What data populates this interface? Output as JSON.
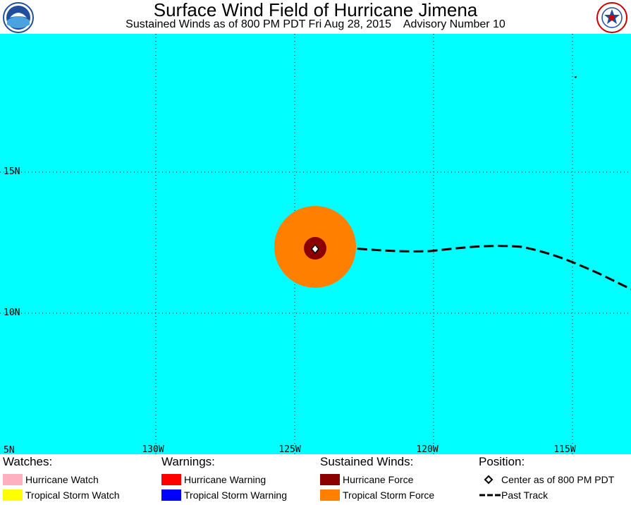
{
  "header": {
    "title": "Surface Wind Field of Hurricane Jimena",
    "subtitle": "Sustained Winds as of 800 PM PDT Fri Aug 28, 2015    Advisory Number 10"
  },
  "map": {
    "background_color": "#00ffff",
    "latitude_labels": [
      "15N",
      "10N",
      "5N"
    ],
    "longitude_labels": [
      "130W",
      "125W",
      "120W",
      "115W"
    ],
    "storm": {
      "name": "Jimena",
      "center_lon": -124.0,
      "center_lat": 12.3,
      "tropical_storm_force_color": "#ff8000",
      "hurricane_force_color": "#8b0000"
    }
  },
  "legend": {
    "watches": {
      "heading": "Watches:",
      "items": [
        {
          "label": "Hurricane Watch",
          "color": "#ffb0c0"
        },
        {
          "label": "Tropical Storm Watch",
          "color": "#ffff00"
        }
      ]
    },
    "warnings": {
      "heading": "Warnings:",
      "items": [
        {
          "label": "Hurricane Warning",
          "color": "#ff0000"
        },
        {
          "label": "Tropical Storm Warning",
          "color": "#0000ff"
        }
      ]
    },
    "winds": {
      "heading": "Sustained Winds:",
      "items": [
        {
          "label": "Hurricane Force",
          "color": "#8b0000"
        },
        {
          "label": "Tropical Storm Force",
          "color": "#ff8000"
        }
      ]
    },
    "position": {
      "heading": "Position:",
      "items": [
        {
          "label": "Center as of 800 PM PDT",
          "icon": "diamond-icon"
        },
        {
          "label": "Past Track",
          "icon": "dashed-line-icon"
        }
      ]
    }
  }
}
